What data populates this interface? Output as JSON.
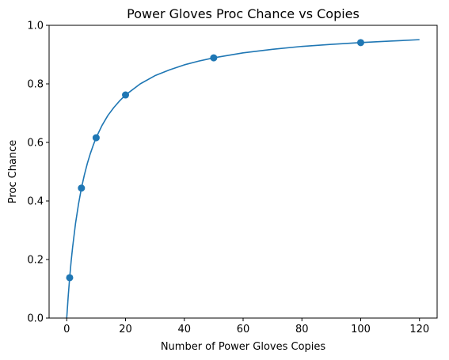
{
  "chart_data": {
    "type": "line",
    "title": "Power Gloves Proc Chance vs Copies",
    "xlabel": "Number of Power Gloves Copies",
    "ylabel": "Proc Chance",
    "xlim": [
      -6,
      126
    ],
    "ylim": [
      0,
      1.0
    ],
    "xticks": [
      0,
      20,
      40,
      60,
      80,
      100,
      120
    ],
    "yticks": [
      0.0,
      0.2,
      0.4,
      0.6,
      0.8,
      1.0
    ],
    "xtick_labels": [
      "0",
      "20",
      "40",
      "60",
      "80",
      "100",
      "120"
    ],
    "ytick_labels": [
      "0.0",
      "0.2",
      "0.4",
      "0.6",
      "0.8",
      "1.0"
    ],
    "grid": false,
    "color": "#1f77b4",
    "series": [
      {
        "kind": "curve",
        "x": [
          0,
          0.5,
          1,
          1.5,
          2,
          3,
          4,
          5,
          6,
          7,
          8,
          9,
          10,
          12,
          14,
          16,
          18,
          20,
          25,
          30,
          35,
          40,
          45,
          50,
          60,
          70,
          80,
          90,
          100,
          110,
          120
        ],
        "y": [
          0.0,
          0.074,
          0.138,
          0.194,
          0.242,
          0.324,
          0.389,
          0.444,
          0.489,
          0.528,
          0.561,
          0.59,
          0.616,
          0.658,
          0.692,
          0.719,
          0.742,
          0.762,
          0.8,
          0.828,
          0.848,
          0.865,
          0.878,
          0.889,
          0.906,
          0.918,
          0.928,
          0.935,
          0.941,
          0.946,
          0.951
        ]
      },
      {
        "kind": "markers",
        "x": [
          1,
          5,
          10,
          20,
          50,
          100
        ],
        "y": [
          0.138,
          0.444,
          0.616,
          0.762,
          0.889,
          0.941
        ]
      }
    ]
  }
}
